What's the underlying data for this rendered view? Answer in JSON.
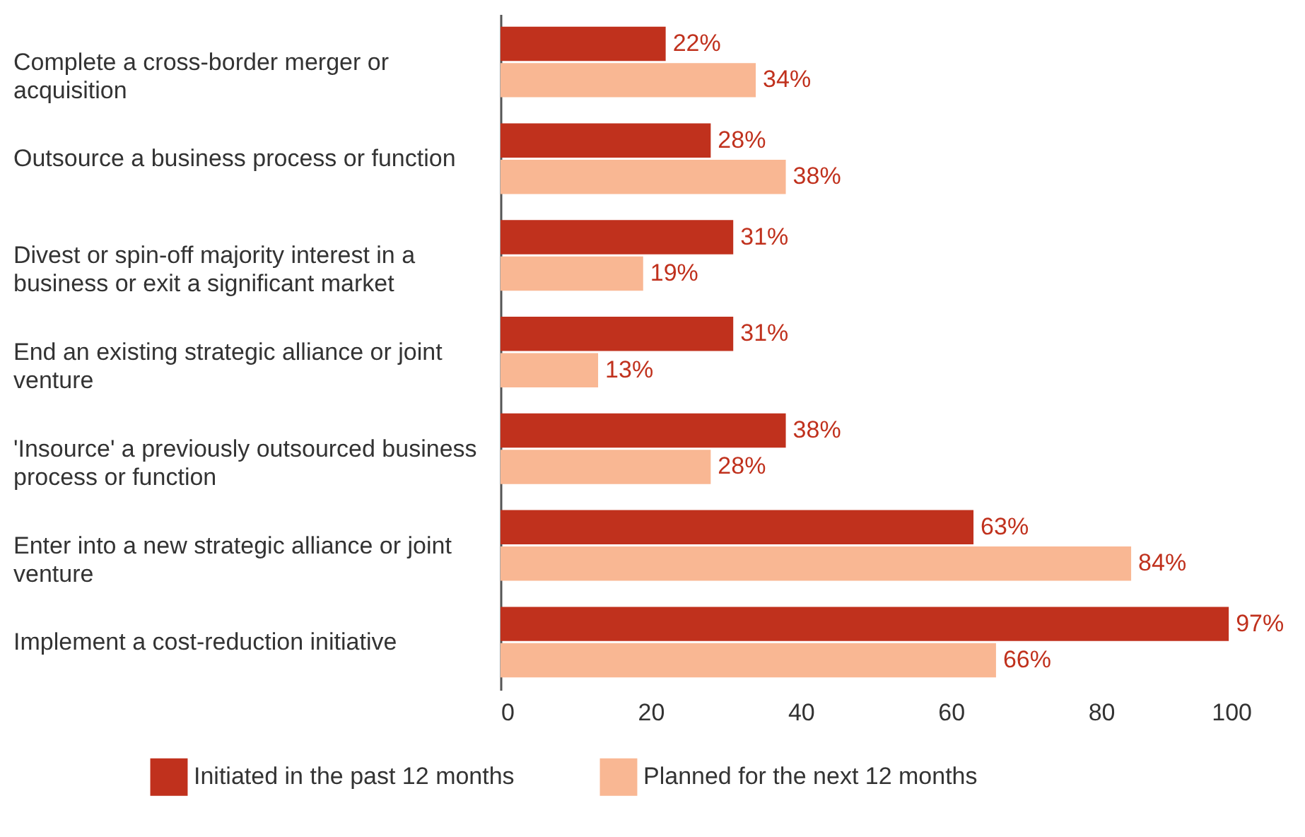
{
  "chart_data": {
    "type": "bar",
    "orientation": "horizontal",
    "categories": [
      "Complete a cross-border merger or acquisition",
      "Outsource a business process or function",
      "Divest or spin-off majority interest in a business or exit a significant market",
      "End an existing strategic alliance or joint venture",
      "'Insource' a previously outsourced business process or function",
      "Enter into a new strategic alliance or joint venture",
      "Implement a cost-reduction initiative"
    ],
    "series": [
      {
        "name": "Initiated in the past 12 months",
        "color": "#c0311d",
        "values": [
          22,
          28,
          31,
          31,
          38,
          63,
          97
        ],
        "value_labels": [
          "22%",
          "28%",
          "31%",
          "31%",
          "38%",
          "63%",
          "97%"
        ]
      },
      {
        "name": "Planned for the next 12 months",
        "color": "#f9b793",
        "values": [
          34,
          38,
          19,
          13,
          28,
          84,
          66
        ],
        "value_labels": [
          "34%",
          "38%",
          "19%",
          "13%",
          "28%",
          "84%",
          "66%"
        ]
      }
    ],
    "xlim": [
      0,
      100
    ],
    "xticks": [
      0,
      20,
      40,
      60,
      80,
      100
    ],
    "legend": "bottom"
  }
}
